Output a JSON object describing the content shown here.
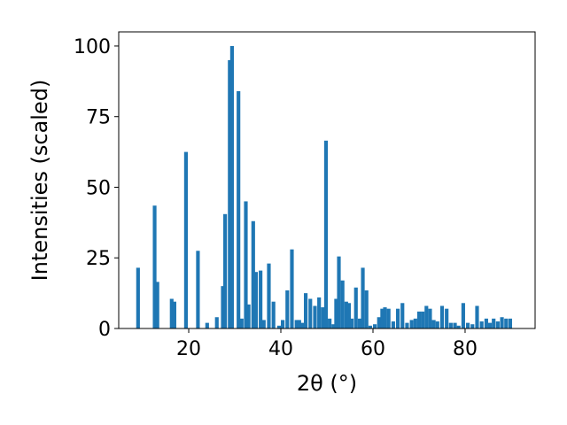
{
  "chart_data": {
    "type": "bar",
    "title": "",
    "xlabel": "2θ (°)",
    "ylabel": "Intensities (scaled)",
    "xlim": [
      4.8,
      95.2
    ],
    "ylim": [
      0,
      105
    ],
    "xticks": [
      20,
      40,
      60,
      80
    ],
    "yticks": [
      0,
      25,
      50,
      75,
      100
    ],
    "grid": false,
    "legend": "none",
    "bar_color": "#1f77b4",
    "bar_width": 0.8,
    "x": [
      9.0,
      12.6,
      13.2,
      16.3,
      16.9,
      19.4,
      22.0,
      24.0,
      26.1,
      27.4,
      27.9,
      28.9,
      29.4,
      30.8,
      31.5,
      32.4,
      33.0,
      34.0,
      34.6,
      35.6,
      36.3,
      37.4,
      38.4,
      39.6,
      40.4,
      41.4,
      42.4,
      43.4,
      44.0,
      44.6,
      45.4,
      46.4,
      47.4,
      48.3,
      49.1,
      49.8,
      50.6,
      51.4,
      52.0,
      52.6,
      53.4,
      54.2,
      54.8,
      55.4,
      56.3,
      57.1,
      57.8,
      58.6,
      59.4,
      60.4,
      61.3,
      62.0,
      62.6,
      63.4,
      64.4,
      65.4,
      66.4,
      67.4,
      68.4,
      69.2,
      70.0,
      70.8,
      71.6,
      72.4,
      73.2,
      74.0,
      75.0,
      76.0,
      76.9,
      77.8,
      78.6,
      79.6,
      80.6,
      81.6,
      82.6,
      83.6,
      84.6,
      85.4,
      86.2,
      87.1,
      88.0,
      88.9,
      89.8
    ],
    "values": [
      21.5,
      43.5,
      16.5,
      10.5,
      9.5,
      62.5,
      27.5,
      2.0,
      4.0,
      15.0,
      40.5,
      95.0,
      100.0,
      84.0,
      3.5,
      45.0,
      8.5,
      38.0,
      20.0,
      20.5,
      3.0,
      23.0,
      9.5,
      1.0,
      3.0,
      13.5,
      28.0,
      3.0,
      3.0,
      2.0,
      12.5,
      10.5,
      8.0,
      11.0,
      7.5,
      66.5,
      3.5,
      1.5,
      10.5,
      25.5,
      17.0,
      9.5,
      9.0,
      3.5,
      14.5,
      3.5,
      21.5,
      13.5,
      1.0,
      1.5,
      4.0,
      7.0,
      7.5,
      7.0,
      2.5,
      7.0,
      9.0,
      2.0,
      3.0,
      3.5,
      6.0,
      6.0,
      8.0,
      7.0,
      3.0,
      2.5,
      8.0,
      7.0,
      2.0,
      2.0,
      1.0,
      9.0,
      2.0,
      1.5,
      8.0,
      2.5,
      3.5,
      2.0,
      3.5,
      2.5,
      4.0,
      3.5,
      3.5
    ]
  }
}
